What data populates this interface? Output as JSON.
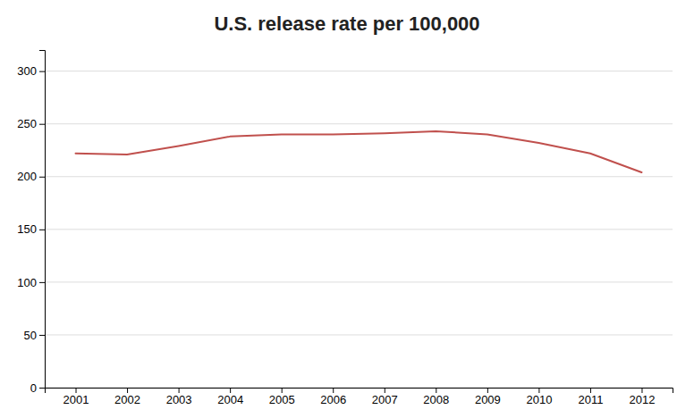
{
  "chart_data": {
    "type": "line",
    "title": "U.S. release rate per 100,000",
    "x": [
      2001,
      2002,
      2003,
      2004,
      2005,
      2006,
      2007,
      2008,
      2009,
      2010,
      2011,
      2012
    ],
    "values": [
      222,
      221,
      229,
      238,
      240,
      240,
      241,
      243,
      240,
      232,
      222,
      204
    ],
    "color": "#C0504D",
    "xlim": [
      2000.4,
      2012.6
    ],
    "xticks": [
      2001,
      2002,
      2003,
      2004,
      2005,
      2006,
      2007,
      2008,
      2009,
      2010,
      2011,
      2012
    ],
    "ylim": [
      0,
      320
    ],
    "yticks": [
      0,
      50,
      100,
      150,
      200,
      250,
      300
    ],
    "grid": "y"
  }
}
